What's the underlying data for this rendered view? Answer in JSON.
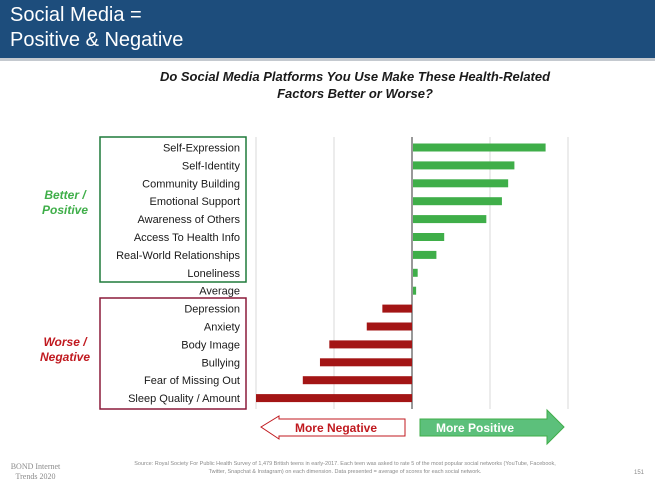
{
  "header": {
    "line1": "Social Media =",
    "line2": "Positive & Negative"
  },
  "groups": {
    "better": "Better / Positive",
    "worse": "Worse / Negative"
  },
  "legend": {
    "negative": "More Negative",
    "positive": "More Positive"
  },
  "footer": {
    "source": "Source: Royal Society For Public Health Survey of 1,479 British teens in early-2017. Each teen was asked to rate 5 of the most popular social networks (YouTube, Facebook, Twitter, Snapchat & Instagram) on each dimension. Data presented = average of scores for each social network.",
    "brand": "BOND Internet Trends 2020",
    "page": "151"
  },
  "colors": {
    "positive": "#3fae49",
    "negative": "#a31515",
    "header": "#1d4d7c"
  },
  "chart_data": {
    "type": "bar",
    "orientation": "horizontal",
    "title": "Do Social Media Platforms You Use Make These Health-Related Factors Better or Worse?",
    "categories": [
      "Self-Expression",
      "Self-Identity",
      "Community Building",
      "Emotional Support",
      "Awareness of Others",
      "Access To Health Info",
      "Real-World Relationships",
      "Loneliness",
      "Average",
      "Depression",
      "Anxiety",
      "Body Image",
      "Bullying",
      "Fear of Missing Out",
      "Sleep Quality / Amount"
    ],
    "values": [
      0.85,
      0.65,
      0.61,
      0.57,
      0.47,
      0.2,
      0.15,
      0.03,
      0.02,
      -0.19,
      -0.29,
      -0.53,
      -0.59,
      -0.7,
      -1.0
    ],
    "xlim": [
      -1.0,
      1.0
    ],
    "grid": true
  }
}
